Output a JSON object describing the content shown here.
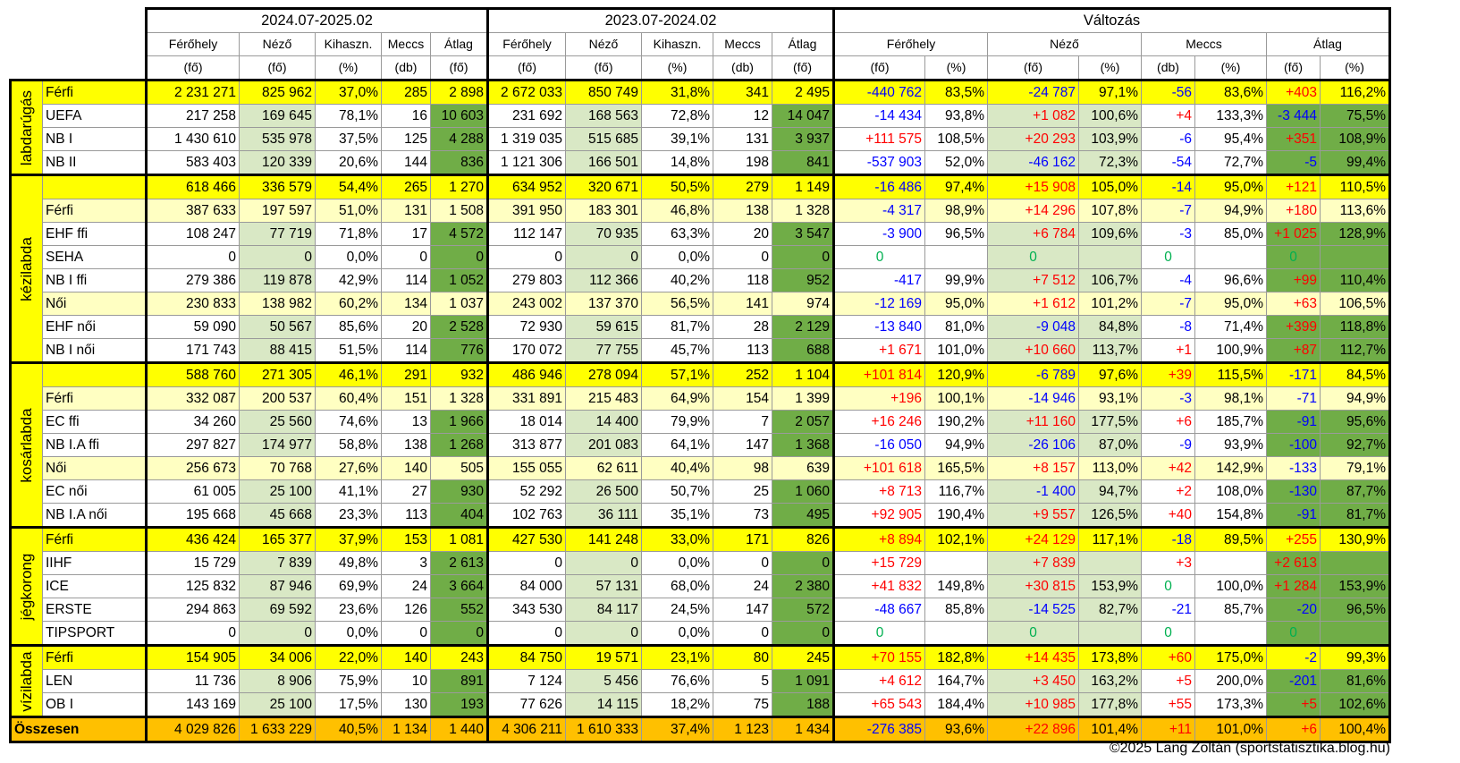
{
  "header": {
    "period1": "2024.07-2025.02",
    "period2": "2023.07-2024.02",
    "change": "Változás",
    "cols1": [
      "Férőhely",
      "Néző",
      "Kihaszn.",
      "Meccs",
      "Átlag"
    ],
    "units1": [
      "(fő)",
      "(fő)",
      "(%)",
      "(db)",
      "(fő)"
    ],
    "chgGroups": [
      "Férőhely",
      "Néző",
      "Meccs",
      "Átlag"
    ],
    "chgUnits": [
      "(fő)",
      "(%)",
      "(fő)",
      "(%)",
      "(db)",
      "(%)",
      "(fő)",
      "(%)"
    ]
  },
  "categories": [
    {
      "name": "labdarúgás",
      "rows": [
        {
          "label": "Férfi",
          "style": "y1",
          "p1": [
            "2 231 271",
            "825 962",
            "37,0%",
            "285",
            "2 898"
          ],
          "p2": [
            "2 672 033",
            "850 749",
            "31,8%",
            "341",
            "2 495"
          ],
          "chg": [
            "-440 762",
            "83,5%",
            "-24 787",
            "97,1%",
            "-56",
            "83,6%",
            "+403",
            "116,2%"
          ]
        },
        {
          "label": "UEFA",
          "style": "w",
          "p1": [
            "217 258",
            "169 645",
            "78,1%",
            "16",
            "10 603"
          ],
          "p2": [
            "231 692",
            "168 563",
            "72,8%",
            "12",
            "14 047"
          ],
          "chg": [
            "-14 434",
            "93,8%",
            "+1 082",
            "100,6%",
            "+4",
            "133,3%",
            "-3 444",
            "75,5%"
          ]
        },
        {
          "label": "NB I",
          "style": "w",
          "p1": [
            "1 430 610",
            "535 978",
            "37,5%",
            "125",
            "4 288"
          ],
          "p2": [
            "1 319 035",
            "515 685",
            "39,1%",
            "131",
            "3 937"
          ],
          "chg": [
            "+111 575",
            "108,5%",
            "+20 293",
            "103,9%",
            "-6",
            "95,4%",
            "+351",
            "108,9%"
          ]
        },
        {
          "label": "NB II",
          "style": "w",
          "p1": [
            "583 403",
            "120 339",
            "20,6%",
            "144",
            "836"
          ],
          "p2": [
            "1 121 306",
            "166 501",
            "14,8%",
            "198",
            "841"
          ],
          "chg": [
            "-537 903",
            "52,0%",
            "-46 162",
            "72,3%",
            "-54",
            "72,7%",
            "-5",
            "99,4%"
          ]
        }
      ]
    },
    {
      "name": "kézilabda",
      "rows": [
        {
          "label": "",
          "style": "y1",
          "p1": [
            "618 466",
            "336 579",
            "54,4%",
            "265",
            "1 270"
          ],
          "p2": [
            "634 952",
            "320 671",
            "50,5%",
            "279",
            "1 149"
          ],
          "chg": [
            "-16 486",
            "97,4%",
            "+15 908",
            "105,0%",
            "-14",
            "95,0%",
            "+121",
            "110,5%"
          ]
        },
        {
          "label": "Férfi",
          "style": "y2",
          "p1": [
            "387 633",
            "197 597",
            "51,0%",
            "131",
            "1 508"
          ],
          "p2": [
            "391 950",
            "183 301",
            "46,8%",
            "138",
            "1 328"
          ],
          "chg": [
            "-4 317",
            "98,9%",
            "+14 296",
            "107,8%",
            "-7",
            "94,9%",
            "+180",
            "113,6%"
          ]
        },
        {
          "label": "EHF ffi",
          "style": "w",
          "p1": [
            "108 247",
            "77 719",
            "71,8%",
            "17",
            "4 572"
          ],
          "p2": [
            "112 147",
            "70 935",
            "63,3%",
            "20",
            "3 547"
          ],
          "chg": [
            "-3 900",
            "96,5%",
            "+6 784",
            "109,6%",
            "-3",
            "85,0%",
            "+1 025",
            "128,9%"
          ]
        },
        {
          "label": "SEHA",
          "style": "w",
          "p1": [
            "0",
            "0",
            "0,0%",
            "0",
            "0"
          ],
          "p2": [
            "0",
            "0",
            "0,0%",
            "0",
            "0"
          ],
          "chg": [
            "0",
            "",
            "0",
            "",
            "0",
            "",
            "0",
            ""
          ]
        },
        {
          "label": "NB I ffi",
          "style": "w",
          "p1": [
            "279 386",
            "119 878",
            "42,9%",
            "114",
            "1 052"
          ],
          "p2": [
            "279 803",
            "112 366",
            "40,2%",
            "118",
            "952"
          ],
          "chg": [
            "-417",
            "99,9%",
            "+7 512",
            "106,7%",
            "-4",
            "96,6%",
            "+99",
            "110,4%"
          ]
        },
        {
          "label": "Női",
          "style": "y2",
          "p1": [
            "230 833",
            "138 982",
            "60,2%",
            "134",
            "1 037"
          ],
          "p2": [
            "243 002",
            "137 370",
            "56,5%",
            "141",
            "974"
          ],
          "chg": [
            "-12 169",
            "95,0%",
            "+1 612",
            "101,2%",
            "-7",
            "95,0%",
            "+63",
            "106,5%"
          ]
        },
        {
          "label": "EHF női",
          "style": "w",
          "p1": [
            "59 090",
            "50 567",
            "85,6%",
            "20",
            "2 528"
          ],
          "p2": [
            "72 930",
            "59 615",
            "81,7%",
            "28",
            "2 129"
          ],
          "chg": [
            "-13 840",
            "81,0%",
            "-9 048",
            "84,8%",
            "-8",
            "71,4%",
            "+399",
            "118,8%"
          ]
        },
        {
          "label": "NB I női",
          "style": "w",
          "p1": [
            "171 743",
            "88 415",
            "51,5%",
            "114",
            "776"
          ],
          "p2": [
            "170 072",
            "77 755",
            "45,7%",
            "113",
            "688"
          ],
          "chg": [
            "+1 671",
            "101,0%",
            "+10 660",
            "113,7%",
            "+1",
            "100,9%",
            "+87",
            "112,7%"
          ]
        }
      ]
    },
    {
      "name": "kosárlabda",
      "rows": [
        {
          "label": "",
          "style": "y1",
          "p1": [
            "588 760",
            "271 305",
            "46,1%",
            "291",
            "932"
          ],
          "p2": [
            "486 946",
            "278 094",
            "57,1%",
            "252",
            "1 104"
          ],
          "chg": [
            "+101 814",
            "120,9%",
            "-6 789",
            "97,6%",
            "+39",
            "115,5%",
            "-171",
            "84,5%"
          ]
        },
        {
          "label": "Férfi",
          "style": "y2",
          "p1": [
            "332 087",
            "200 537",
            "60,4%",
            "151",
            "1 328"
          ],
          "p2": [
            "331 891",
            "215 483",
            "64,9%",
            "154",
            "1 399"
          ],
          "chg": [
            "+196",
            "100,1%",
            "-14 946",
            "93,1%",
            "-3",
            "98,1%",
            "-71",
            "94,9%"
          ]
        },
        {
          "label": "EC ffi",
          "style": "w",
          "p1": [
            "34 260",
            "25 560",
            "74,6%",
            "13",
            "1 966"
          ],
          "p2": [
            "18 014",
            "14 400",
            "79,9%",
            "7",
            "2 057"
          ],
          "chg": [
            "+16 246",
            "190,2%",
            "+11 160",
            "177,5%",
            "+6",
            "185,7%",
            "-91",
            "95,6%"
          ]
        },
        {
          "label": "NB I.A ffi",
          "style": "w",
          "p1": [
            "297 827",
            "174 977",
            "58,8%",
            "138",
            "1 268"
          ],
          "p2": [
            "313 877",
            "201 083",
            "64,1%",
            "147",
            "1 368"
          ],
          "chg": [
            "-16 050",
            "94,9%",
            "-26 106",
            "87,0%",
            "-9",
            "93,9%",
            "-100",
            "92,7%"
          ]
        },
        {
          "label": "Női",
          "style": "y2",
          "p1": [
            "256 673",
            "70 768",
            "27,6%",
            "140",
            "505"
          ],
          "p2": [
            "155 055",
            "62 611",
            "40,4%",
            "98",
            "639"
          ],
          "chg": [
            "+101 618",
            "165,5%",
            "+8 157",
            "113,0%",
            "+42",
            "142,9%",
            "-133",
            "79,1%"
          ]
        },
        {
          "label": "EC női",
          "style": "w",
          "p1": [
            "61 005",
            "25 100",
            "41,1%",
            "27",
            "930"
          ],
          "p2": [
            "52 292",
            "26 500",
            "50,7%",
            "25",
            "1 060"
          ],
          "chg": [
            "+8 713",
            "116,7%",
            "-1 400",
            "94,7%",
            "+2",
            "108,0%",
            "-130",
            "87,7%"
          ]
        },
        {
          "label": "NB I.A női",
          "style": "w",
          "p1": [
            "195 668",
            "45 668",
            "23,3%",
            "113",
            "404"
          ],
          "p2": [
            "102 763",
            "36 111",
            "35,1%",
            "73",
            "495"
          ],
          "chg": [
            "+92 905",
            "190,4%",
            "+9 557",
            "126,5%",
            "+40",
            "154,8%",
            "-91",
            "81,7%"
          ]
        }
      ]
    },
    {
      "name": "jégkorong",
      "rows": [
        {
          "label": "Férfi",
          "style": "y1",
          "p1": [
            "436 424",
            "165 377",
            "37,9%",
            "153",
            "1 081"
          ],
          "p2": [
            "427 530",
            "141 248",
            "33,0%",
            "171",
            "826"
          ],
          "chg": [
            "+8 894",
            "102,1%",
            "+24 129",
            "117,1%",
            "-18",
            "89,5%",
            "+255",
            "130,9%"
          ]
        },
        {
          "label": "IIHF",
          "style": "w",
          "p1": [
            "15 729",
            "7 839",
            "49,8%",
            "3",
            "2 613"
          ],
          "p2": [
            "0",
            "0",
            "0,0%",
            "0",
            "0"
          ],
          "chg": [
            "+15 729",
            "",
            "+7 839",
            "",
            "+3",
            "",
            "+2 613",
            ""
          ]
        },
        {
          "label": "ICE",
          "style": "w",
          "p1": [
            "125 832",
            "87 946",
            "69,9%",
            "24",
            "3 664"
          ],
          "p2": [
            "84 000",
            "57 131",
            "68,0%",
            "24",
            "2 380"
          ],
          "chg": [
            "+41 832",
            "149,8%",
            "+30 815",
            "153,9%",
            "0",
            "100,0%",
            "+1 284",
            "153,9%"
          ]
        },
        {
          "label": "ERSTE",
          "style": "w",
          "p1": [
            "294 863",
            "69 592",
            "23,6%",
            "126",
            "552"
          ],
          "p2": [
            "343 530",
            "84 117",
            "24,5%",
            "147",
            "572"
          ],
          "chg": [
            "-48 667",
            "85,8%",
            "-14 525",
            "82,7%",
            "-21",
            "85,7%",
            "-20",
            "96,5%"
          ]
        },
        {
          "label": "TIPSPORT",
          "style": "w",
          "p1": [
            "0",
            "0",
            "0,0%",
            "0",
            "0"
          ],
          "p2": [
            "0",
            "0",
            "0,0%",
            "0",
            "0"
          ],
          "chg": [
            "0",
            "",
            "0",
            "",
            "0",
            "",
            "0",
            ""
          ]
        }
      ]
    },
    {
      "name": "vízilabda",
      "rows": [
        {
          "label": "Férfi",
          "style": "y1",
          "p1": [
            "154 905",
            "34 006",
            "22,0%",
            "140",
            "243"
          ],
          "p2": [
            "84 750",
            "19 571",
            "23,1%",
            "80",
            "245"
          ],
          "chg": [
            "+70 155",
            "182,8%",
            "+14 435",
            "173,8%",
            "+60",
            "175,0%",
            "-2",
            "99,3%"
          ]
        },
        {
          "label": "LEN",
          "style": "w",
          "p1": [
            "11 736",
            "8 906",
            "75,9%",
            "10",
            "891"
          ],
          "p2": [
            "7 124",
            "5 456",
            "76,6%",
            "5",
            "1 091"
          ],
          "chg": [
            "+4 612",
            "164,7%",
            "+3 450",
            "163,2%",
            "+5",
            "200,0%",
            "-201",
            "81,6%"
          ]
        },
        {
          "label": "OB I",
          "style": "w",
          "p1": [
            "143 169",
            "25 100",
            "17,5%",
            "130",
            "193"
          ],
          "p2": [
            "77 626",
            "14 115",
            "18,2%",
            "75",
            "188"
          ],
          "chg": [
            "+65 543",
            "184,4%",
            "+10 985",
            "177,8%",
            "+55",
            "173,3%",
            "+5",
            "102,6%"
          ]
        }
      ]
    }
  ],
  "total": {
    "label": "Összesen",
    "p1": [
      "4 029 826",
      "1 633 229",
      "40,5%",
      "1 134",
      "1 440"
    ],
    "p2": [
      "4 306 211",
      "1 610 333",
      "37,4%",
      "1 123",
      "1 434"
    ],
    "chg": [
      "-276 385",
      "93,6%",
      "+22 896",
      "101,4%",
      "+11",
      "101,0%",
      "+6",
      "100,4%"
    ]
  },
  "credit": "©2025 Lang Zoltán (sportstatisztika.blog.hu)",
  "colors": {
    "yellow": "#ffff00",
    "lightYellow": "#ffffc2",
    "lightGreen": "#d9e8c5",
    "green": "#70ad47",
    "orange": "#ffc000",
    "red": "#ff0000",
    "blue": "#0000ff",
    "greenText": "#00b050"
  }
}
